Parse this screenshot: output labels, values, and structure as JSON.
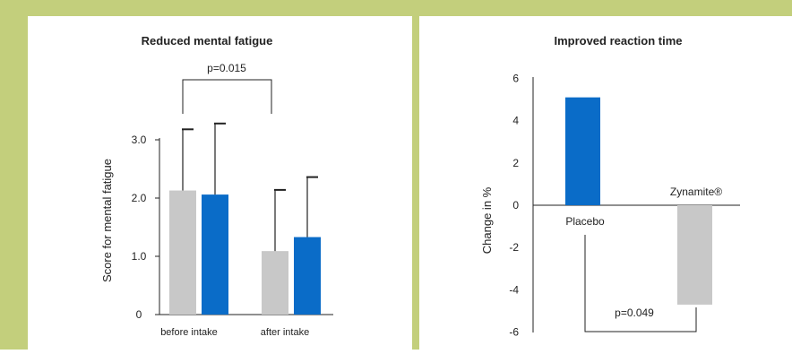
{
  "chart_data": [
    {
      "type": "bar",
      "title": "Reduced mental fatigue",
      "xlabel": "",
      "ylabel": "Score for mental fatigue",
      "ylim": [
        0,
        3.0
      ],
      "yticks": [
        "0",
        "1.0",
        "2.0",
        "3.0"
      ],
      "categories": [
        "before intake",
        "after intake"
      ],
      "series": [
        {
          "values": [
            2.13,
            1.09
          ],
          "errors": [
            1.05,
            1.05
          ],
          "color": "#c8c8c8"
        },
        {
          "values": [
            2.06,
            1.33
          ],
          "errors": [
            1.22,
            1.03
          ],
          "color": "#0a6cc8"
        }
      ],
      "annotations": [
        {
          "text": "p=0.015"
        }
      ],
      "grid": false
    },
    {
      "type": "bar",
      "title": "Improved reaction time",
      "xlabel": "",
      "ylabel": "Change in %",
      "ylim": [
        -6,
        6
      ],
      "yticks": [
        "6",
        "4",
        "2",
        "0",
        "-2",
        "-4",
        "-6"
      ],
      "categories": [
        "Placebo",
        "Zynamite®"
      ],
      "values": [
        5.1,
        -4.7
      ],
      "colors": [
        "#0a6cc8",
        "#c8c8c8"
      ],
      "annotations": [
        {
          "text": "p=0.049"
        }
      ],
      "grid": false
    }
  ]
}
